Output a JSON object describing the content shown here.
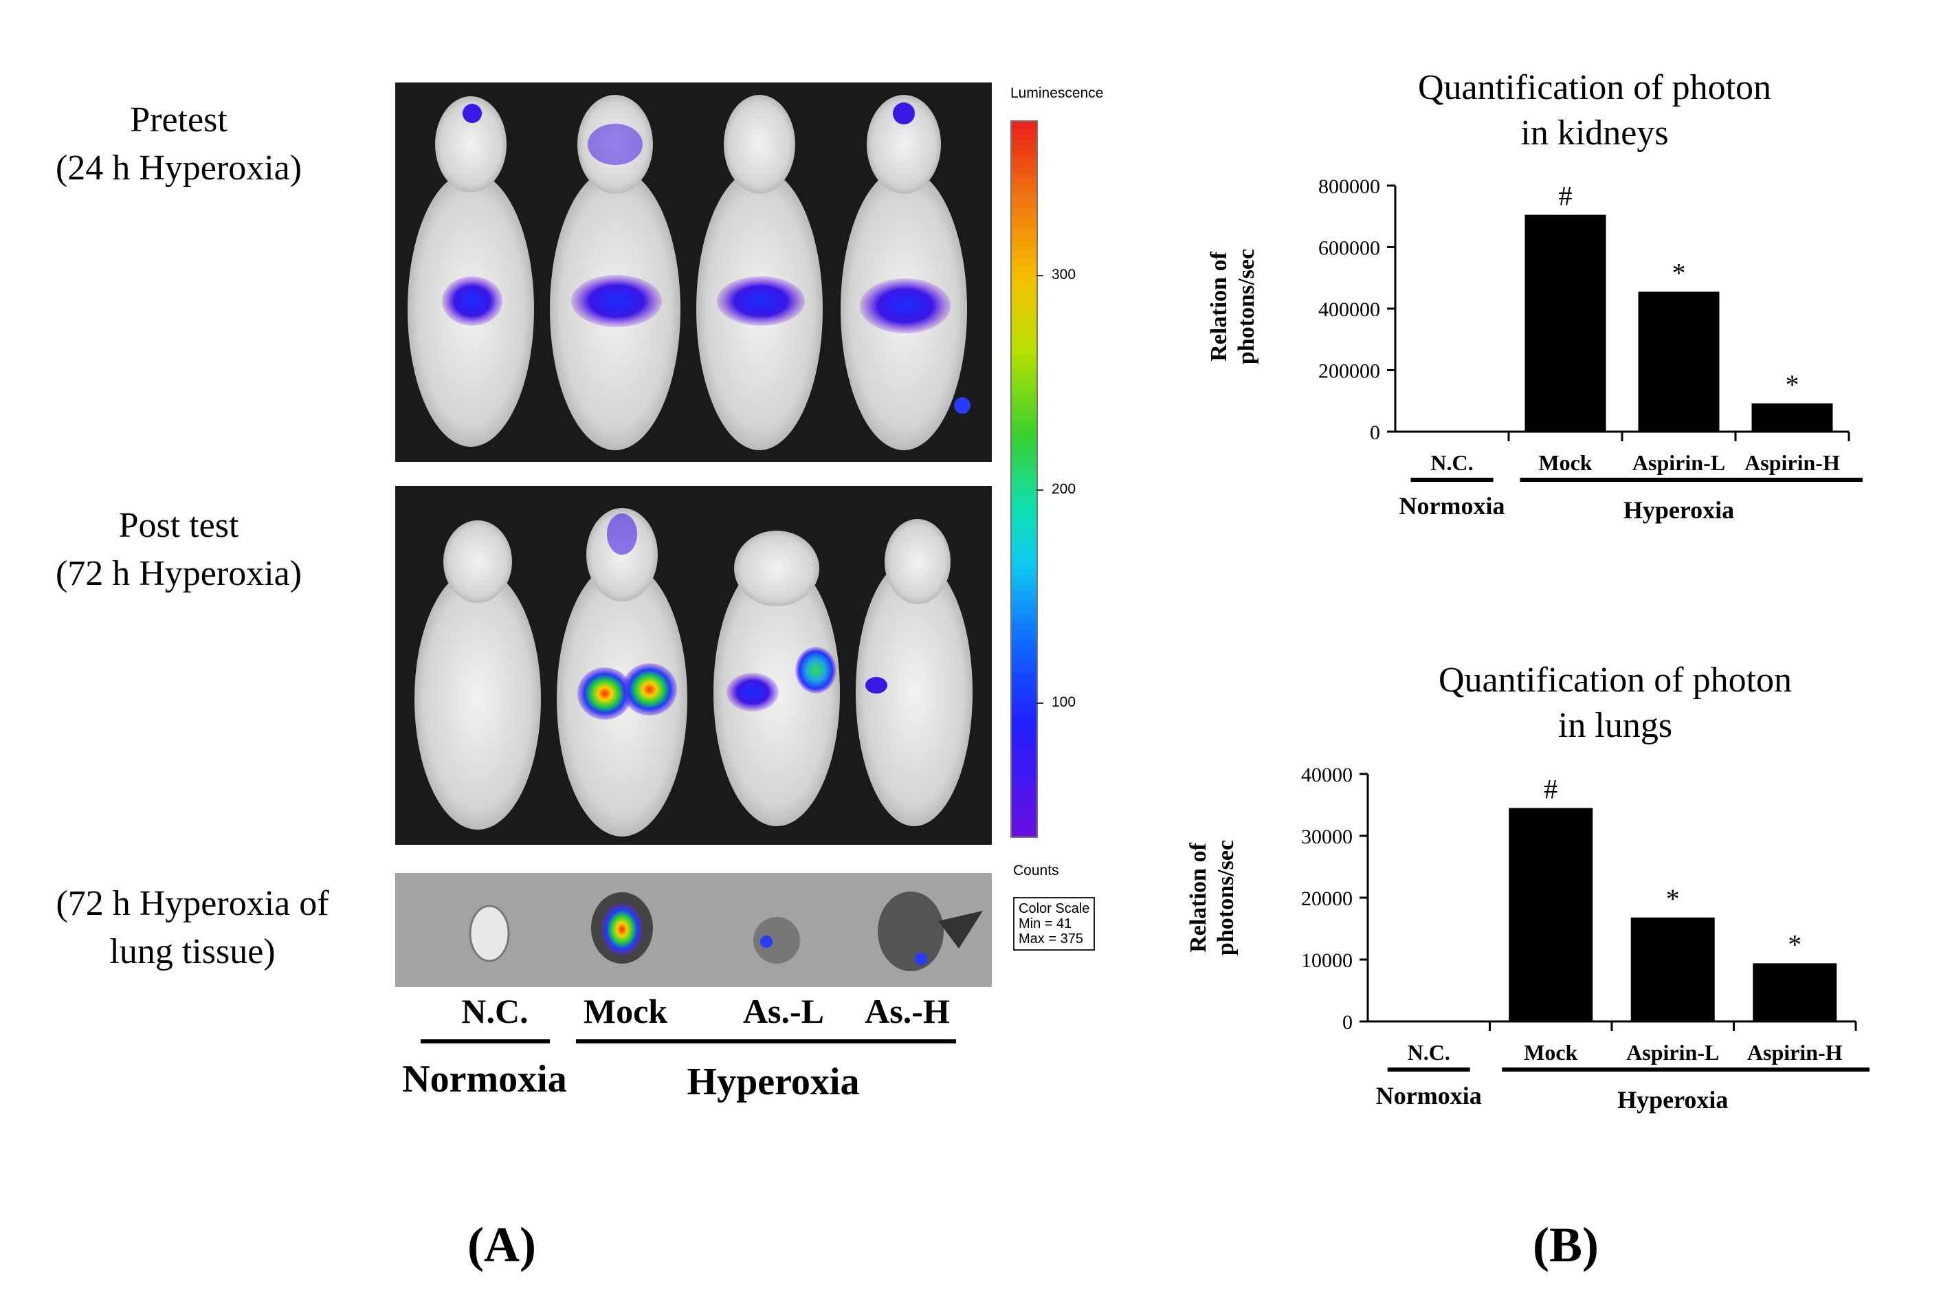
{
  "panel_a": {
    "row_labels": {
      "pretest": [
        "Pretest",
        "(24 h Hyperoxia)"
      ],
      "posttest": [
        "Post test",
        "(72 h Hyperoxia)"
      ],
      "lung": [
        "(72 h Hyperoxia  of",
        "lung tissue)"
      ]
    },
    "colorbar": {
      "title": "Luminescence",
      "ticks": [
        "300",
        "200",
        "100"
      ],
      "counts_label": "Counts",
      "scale_box": [
        "Color Scale",
        "Min = 41",
        "Max = 375"
      ]
    },
    "sample_labels": [
      "N.C.",
      "Mock",
      "As.-L",
      "As.-H"
    ],
    "groups": {
      "normoxia": "Normoxia",
      "hyperoxia": "Hyperoxia"
    },
    "letter": "(A)"
  },
  "panel_b": {
    "letter": "(B)"
  },
  "chart_data": [
    {
      "type": "bar",
      "title": "Quantification  of photon in kidneys",
      "title_lines": [
        "Quantification  of photon",
        "in kidneys"
      ],
      "ylabel_lines": [
        "Relation of",
        "photons/sec"
      ],
      "categories": [
        "N.C.",
        "Mock",
        "Aspirin-L",
        "Aspirin-H"
      ],
      "values": [
        0,
        705000,
        455000,
        92000
      ],
      "markers": [
        "",
        "#",
        "*",
        "*"
      ],
      "yticks": [
        "0",
        "200000",
        "400000",
        "600000",
        "800000"
      ],
      "ylim": [
        0,
        800000
      ],
      "groups": {
        "normoxia": "Normoxia",
        "hyperoxia": "Hyperoxia"
      }
    },
    {
      "type": "bar",
      "title": "Quantification  of photon in lungs",
      "title_lines": [
        "Quantification  of photon",
        "in lungs"
      ],
      "ylabel_lines": [
        "Relation of",
        "photons/sec"
      ],
      "categories": [
        "N.C.",
        "Mock",
        "Aspirin-L",
        "Aspirin-H"
      ],
      "values": [
        0,
        34500,
        16800,
        9400
      ],
      "markers": [
        "",
        "#",
        "*",
        "*"
      ],
      "yticks": [
        "0",
        "10000",
        "20000",
        "30000",
        "40000"
      ],
      "ylim": [
        0,
        40000
      ],
      "groups": {
        "normoxia": "Normoxia",
        "hyperoxia": "Hyperoxia"
      }
    }
  ]
}
